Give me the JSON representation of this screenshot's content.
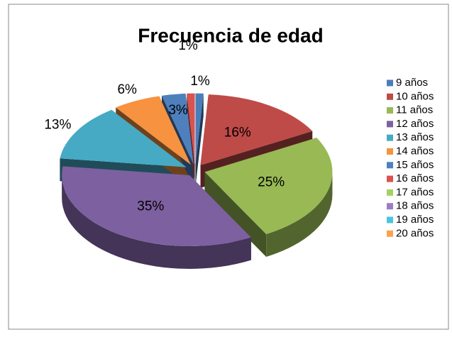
{
  "chart_data": {
    "type": "pie",
    "title": "Frecuencia de edad",
    "categories": [
      "9 años",
      "10 años",
      "11 años",
      "12 años",
      "13 años",
      "14 años",
      "15 años",
      "16 años",
      "17 años",
      "18 años",
      "19 años",
      "20 años"
    ],
    "values": [
      1,
      16,
      25,
      35,
      13,
      6,
      3,
      1,
      0,
      0,
      0,
      0
    ],
    "value_labels": [
      "1%",
      "16%",
      "25%",
      "35%",
      "13%",
      "6%",
      "3%",
      "1%",
      null,
      null,
      null,
      null
    ],
    "colors": [
      "#4a7ebb",
      "#be4b48",
      "#98b954",
      "#7d60a0",
      "#46aac5",
      "#f69240",
      "#4e80bd",
      "#d9534f",
      "#a6d160",
      "#9d7bc7",
      "#4ec3dc",
      "#f9a34d"
    ],
    "legend": "right"
  }
}
